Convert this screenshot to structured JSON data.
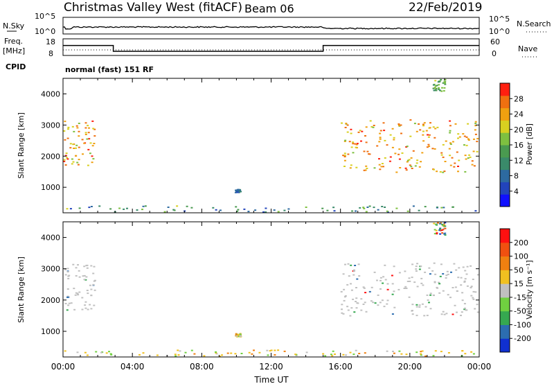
{
  "header": {
    "title": "Christmas Valley West (fitACF)",
    "beam": "Beam 06",
    "date": "22/Feb/2019"
  },
  "noise_panel": {
    "left_label": "N.Sky",
    "right_label": "N.Search",
    "left_ticks": [
      "10^5",
      "10^0"
    ],
    "right_ticks": [
      "10^5",
      "10^0"
    ]
  },
  "freq_panel": {
    "left_label_top": "Freq.",
    "left_label_bottom": "[MHz]",
    "left_ticks": [
      "18",
      "8"
    ],
    "right_ticks": [
      "60",
      "0"
    ],
    "right_label": "Nave",
    "cpid_label": "CPID",
    "cpid_text": "normal (fast) 151 RF",
    "freq_steps": [
      [
        0,
        14
      ],
      [
        2.9,
        14
      ],
      [
        2.9,
        10.5
      ],
      [
        15,
        10.5
      ],
      [
        15,
        14
      ],
      [
        24,
        14
      ]
    ],
    "nave_level": 20
  },
  "chart_data": [
    {
      "type": "heatmap",
      "name": "power",
      "ylabel": "Slant Range [km]",
      "ylim": [
        180,
        4500
      ],
      "yticks": [
        "4000",
        "3000",
        "2000",
        "1000"
      ],
      "xlim": [
        0,
        24
      ],
      "colorbar": {
        "label": "Power [dB]",
        "ticks": [
          "28",
          "24",
          "20",
          "16",
          "12",
          "8",
          "4"
        ],
        "range": [
          0,
          32
        ],
        "colors": [
          "#1010ff",
          "#2244bb",
          "#2d6aa0",
          "#3a8a6a",
          "#4a9a50",
          "#7ec040",
          "#d8d020",
          "#f0a010",
          "#f07010",
          "#ff2010"
        ]
      },
      "regions": [
        {
          "t": [
            0.0,
            1.8
          ],
          "r": [
            1700,
            3200
          ],
          "v": [
            18,
            30
          ]
        },
        {
          "t": [
            16.0,
            24.0
          ],
          "r": [
            1500,
            3200
          ],
          "v": [
            18,
            30
          ]
        },
        {
          "t": [
            21.3,
            22.0
          ],
          "r": [
            4100,
            4500
          ],
          "v": [
            10,
            20
          ]
        },
        {
          "t": [
            0.0,
            24.0
          ],
          "r": [
            180,
            420
          ],
          "v": [
            4,
            20
          ]
        },
        {
          "t": [
            9.9,
            10.2
          ],
          "r": [
            850,
            950
          ],
          "v": [
            6,
            10
          ]
        }
      ]
    },
    {
      "type": "heatmap",
      "name": "velocity",
      "ylabel": "Slant Range [km]",
      "ylim": [
        180,
        4500
      ],
      "yticks": [
        "4000",
        "3000",
        "2000",
        "1000"
      ],
      "xlim": [
        0,
        24
      ],
      "xticks": [
        "00:00",
        "04:00",
        "08:00",
        "12:00",
        "16:00",
        "20:00",
        "00:00"
      ],
      "xlabel": "Time UT",
      "colorbar": {
        "label": "Velocity [m s⁻¹]",
        "ticks": [
          "200",
          "100",
          "50",
          "15",
          "-15",
          "-50",
          "-100",
          "-200"
        ],
        "colors": [
          "#1030d0",
          "#2c6db0",
          "#36a850",
          "#70d040",
          "#c0c0c0",
          "#f0c020",
          "#f08010",
          "#f05010",
          "#ff1010"
        ]
      },
      "regions": [
        {
          "t": [
            0.0,
            1.8
          ],
          "r": [
            1700,
            3200
          ],
          "v": "ground"
        },
        {
          "t": [
            16.0,
            24.0
          ],
          "r": [
            1500,
            3200
          ],
          "v": "ground"
        },
        {
          "t": [
            21.3,
            22.0
          ],
          "r": [
            4100,
            4500
          ],
          "v": "mixed"
        },
        {
          "t": [
            0.0,
            24.0
          ],
          "r": [
            180,
            420
          ],
          "v": "orange"
        },
        {
          "t": [
            9.9,
            10.2
          ],
          "r": [
            850,
            950
          ],
          "v": "orange"
        }
      ]
    }
  ]
}
